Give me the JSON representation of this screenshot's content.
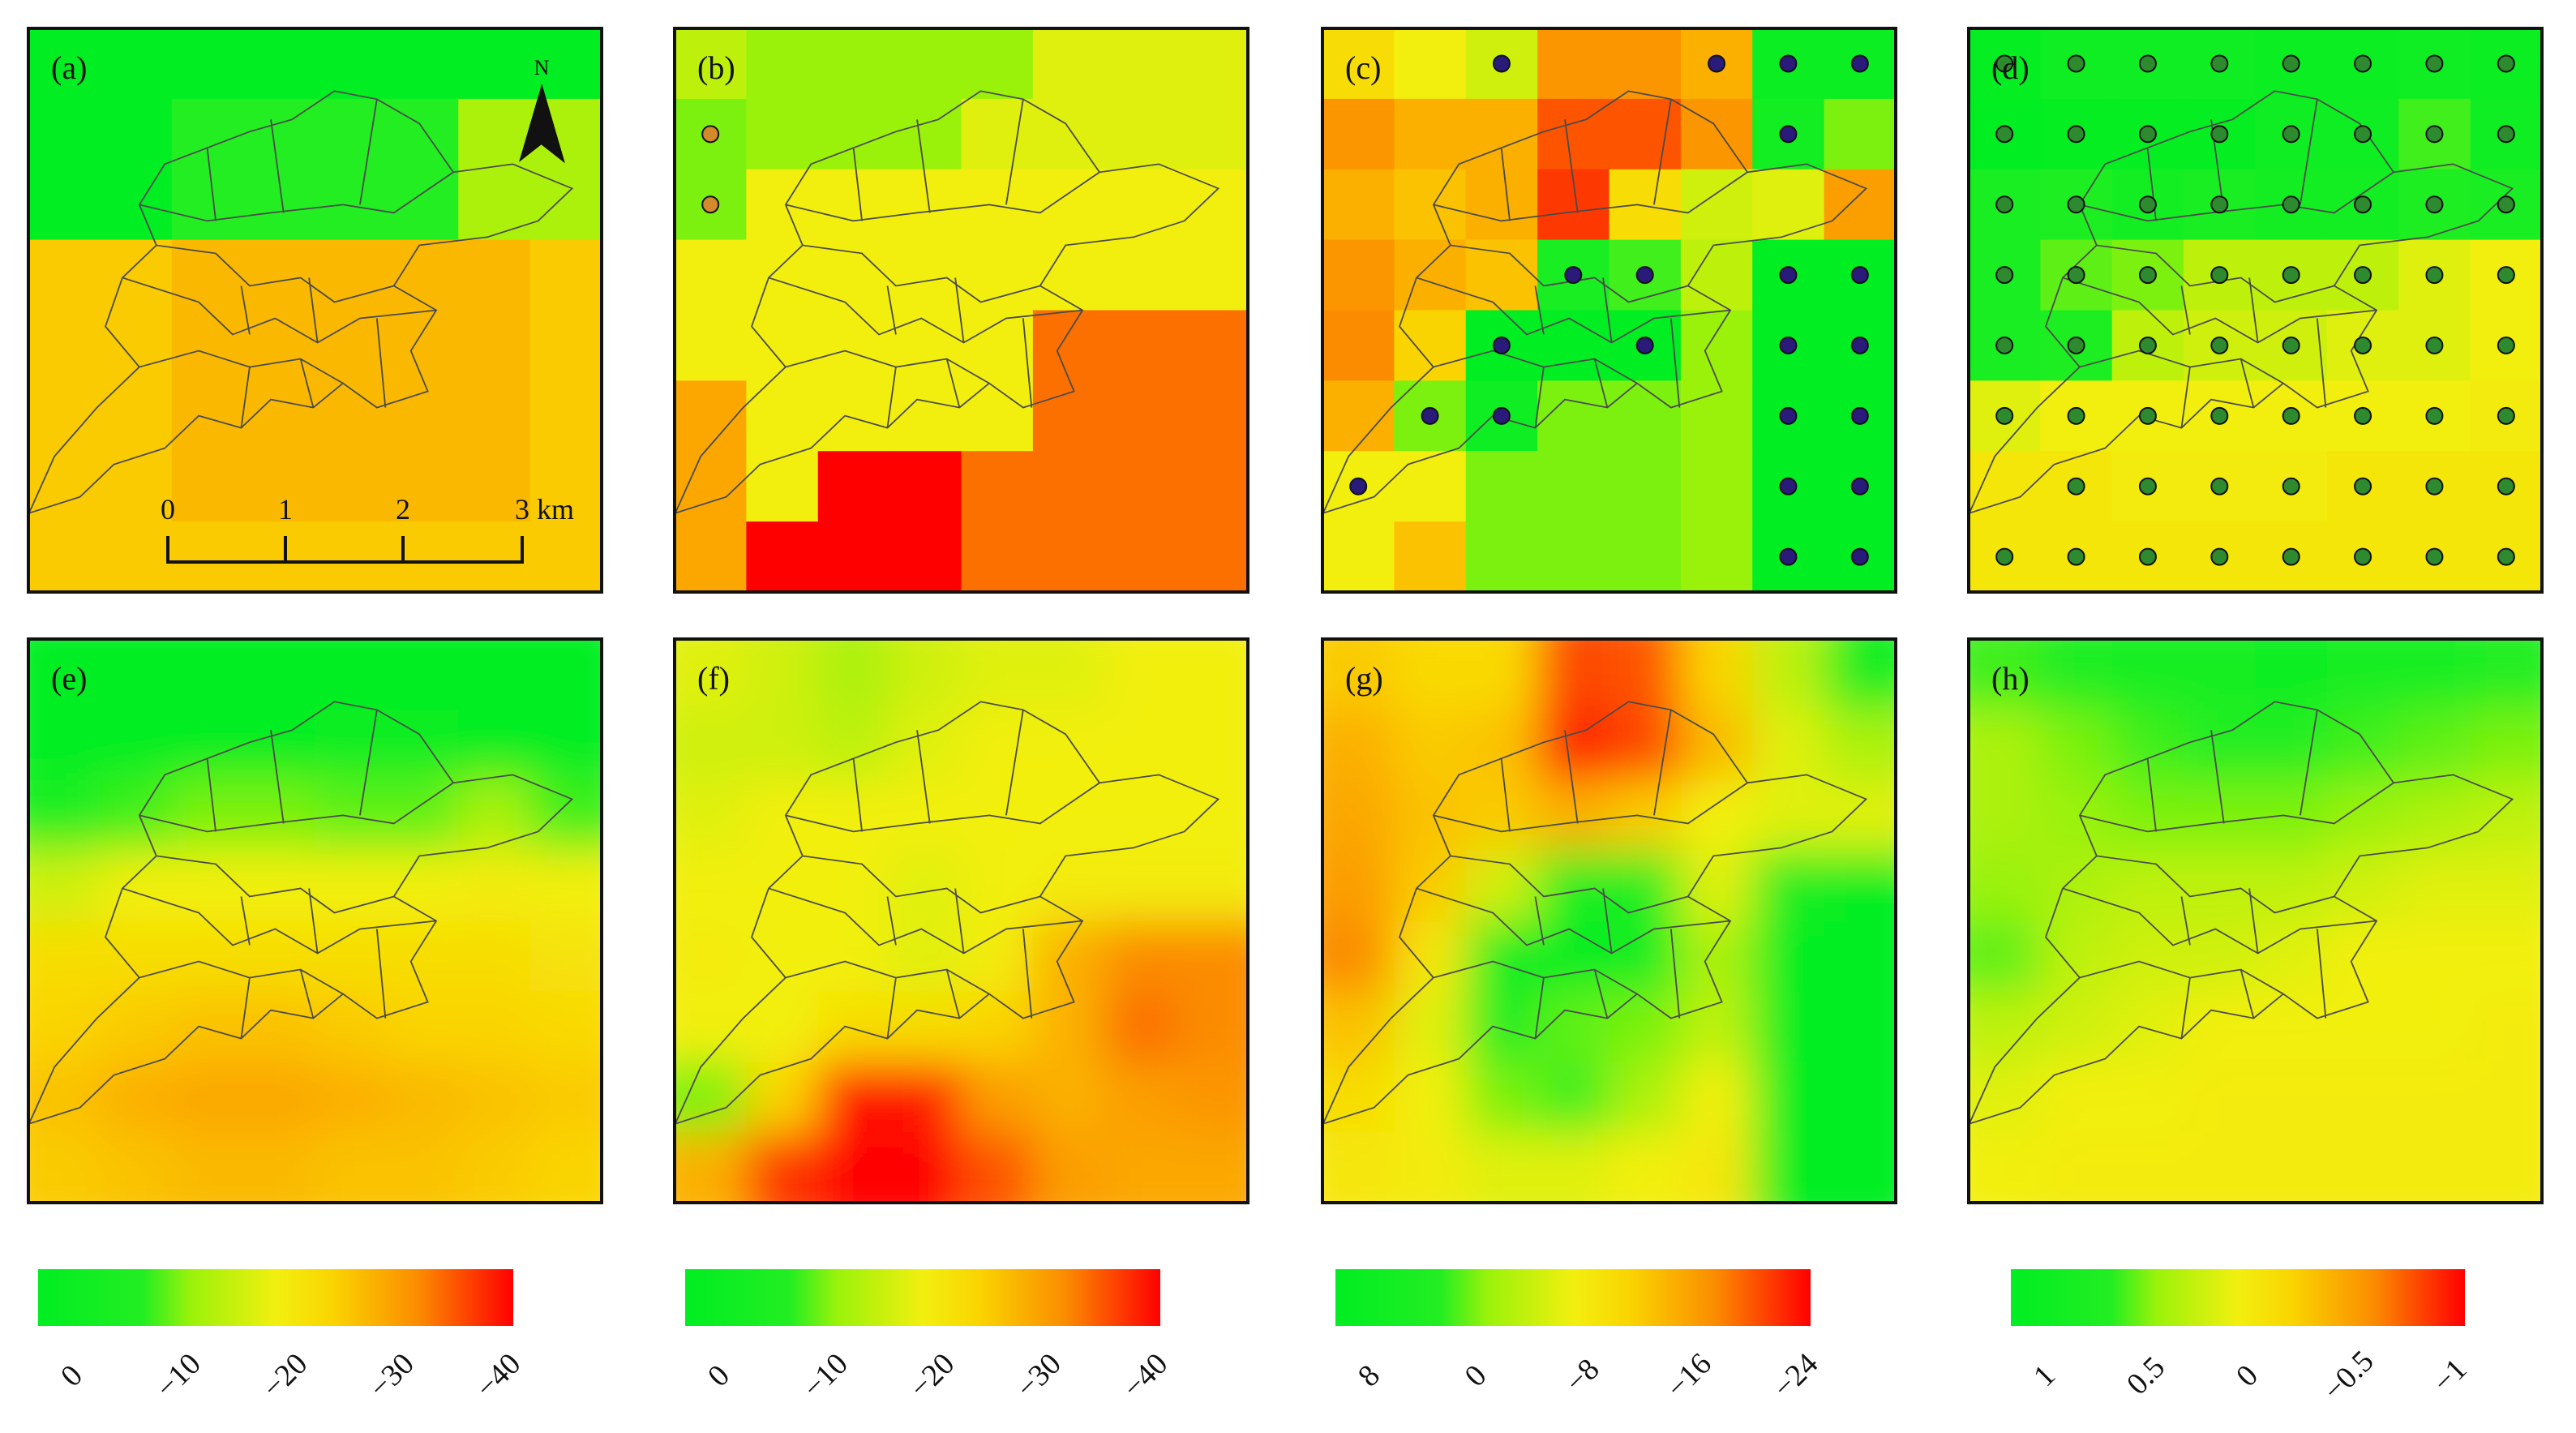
{
  "colors": {
    "green": "#00ee22",
    "light_green": "#9af20a",
    "yellow": "#f2ef0f",
    "gold": "#fad400",
    "orange": "#fb8c00",
    "red": "#ff0000",
    "dot_fill_c": "#2a1a7a",
    "dot_fill_d": "#2e8a2e",
    "dot_fill_b": "#d28a2a",
    "frame": "#111111",
    "boundary": "#4a4a4a"
  },
  "panels": [
    {
      "id": "a",
      "label": "(a)",
      "kind": "coarse",
      "grid": [
        [
          0,
          0,
          0,
          0,
          0,
          0,
          0,
          0
        ],
        [
          0,
          0,
          0.7,
          0.7,
          0.7,
          0.7,
          1.2,
          1.2
        ],
        [
          0,
          0,
          0.7,
          0.7,
          0.7,
          0.7,
          1.2,
          1.2
        ],
        [
          2.3,
          2.3,
          2.5,
          2.5,
          2.5,
          2.5,
          2.5,
          2.3
        ],
        [
          2.3,
          2.3,
          2.5,
          2.5,
          2.5,
          2.5,
          2.5,
          2.3
        ],
        [
          2.3,
          2.3,
          2.5,
          2.5,
          2.5,
          2.5,
          2.5,
          2.3
        ],
        [
          2.3,
          2.3,
          2.5,
          2.5,
          2.5,
          2.5,
          2.5,
          2.3
        ],
        [
          2.3,
          2.3,
          2.3,
          2.3,
          2.3,
          2.3,
          2.3,
          2.3
        ]
      ],
      "dots": []
    },
    {
      "id": "b",
      "label": "(b)",
      "kind": "coarse",
      "grid": [
        [
          1.3,
          1.1,
          1.1,
          1.1,
          1.1,
          1.5,
          1.5,
          1.5
        ],
        [
          1.0,
          1.1,
          1.1,
          1.1,
          1.5,
          1.5,
          1.5,
          1.5
        ],
        [
          1.0,
          1.6,
          1.6,
          1.6,
          1.6,
          1.6,
          1.6,
          1.6
        ],
        [
          1.6,
          1.6,
          1.6,
          1.6,
          1.6,
          1.6,
          1.6,
          1.6
        ],
        [
          1.6,
          1.6,
          1.6,
          1.6,
          1.6,
          3.2,
          3.2,
          3.2
        ],
        [
          2.7,
          1.6,
          1.6,
          1.6,
          1.6,
          3.2,
          3.2,
          3.2
        ],
        [
          2.7,
          1.6,
          4.0,
          4.0,
          3.2,
          3.2,
          3.2,
          3.2
        ],
        [
          2.7,
          4.0,
          4.0,
          4.0,
          3.2,
          3.2,
          3.2,
          3.2
        ]
      ],
      "dots": [
        [
          0,
          1
        ],
        [
          0,
          2
        ]
      ]
    },
    {
      "id": "c",
      "label": "(c)",
      "kind": "coarse",
      "grid": [
        [
          2.0,
          1.6,
          1.4,
          2.9,
          2.9,
          2.6,
          0.2,
          0.2
        ],
        [
          2.9,
          2.6,
          2.6,
          3.4,
          3.4,
          2.9,
          0.4,
          1.0
        ],
        [
          2.6,
          2.4,
          2.6,
          3.6,
          2.0,
          1.4,
          1.5,
          2.8
        ],
        [
          2.9,
          2.6,
          2.4,
          0.5,
          0.8,
          1.3,
          0.0,
          0.0
        ],
        [
          3.0,
          2.2,
          0.0,
          0.0,
          0.0,
          1.1,
          0.0,
          0.0
        ],
        [
          2.6,
          1.0,
          0.3,
          1.0,
          1.0,
          1.1,
          0.0,
          0.0
        ],
        [
          1.6,
          1.6,
          1.0,
          1.0,
          1.0,
          1.1,
          0.0,
          0.0
        ],
        [
          1.6,
          2.4,
          1.0,
          1.0,
          1.0,
          1.1,
          0.0,
          0.0
        ]
      ],
      "dots": [
        [
          2,
          0
        ],
        [
          5,
          0
        ],
        [
          6,
          0
        ],
        [
          7,
          0
        ],
        [
          6,
          1
        ],
        [
          3,
          3
        ],
        [
          4,
          3
        ],
        [
          6,
          3
        ],
        [
          7,
          3
        ],
        [
          2,
          4
        ],
        [
          4,
          4
        ],
        [
          6,
          4
        ],
        [
          7,
          4
        ],
        [
          1,
          5
        ],
        [
          2,
          5
        ],
        [
          6,
          5
        ],
        [
          7,
          5
        ],
        [
          0,
          6
        ],
        [
          6,
          6
        ],
        [
          7,
          6
        ],
        [
          6,
          7
        ],
        [
          7,
          7
        ]
      ]
    },
    {
      "id": "d",
      "label": "(d)",
      "kind": "coarse",
      "grid": [
        [
          0.1,
          0.3,
          0.3,
          0.3,
          0.2,
          0.2,
          0.3,
          0.2
        ],
        [
          0.0,
          0.1,
          0.1,
          0.1,
          0.3,
          0.3,
          0.8,
          0.3
        ],
        [
          0.5,
          0.6,
          0.4,
          0.5,
          0.4,
          0.4,
          0.6,
          0.5
        ],
        [
          0.5,
          0.9,
          1.0,
          1.3,
          1.3,
          1.3,
          1.5,
          1.6
        ],
        [
          0.5,
          0.6,
          1.3,
          1.4,
          1.4,
          1.5,
          1.5,
          1.6
        ],
        [
          1.5,
          1.6,
          1.6,
          1.6,
          1.6,
          1.6,
          1.6,
          1.7
        ],
        [
          1.8,
          1.8,
          1.7,
          1.7,
          1.7,
          1.8,
          1.8,
          1.8
        ],
        [
          1.8,
          1.8,
          1.8,
          1.8,
          1.8,
          1.8,
          1.8,
          1.8
        ]
      ],
      "dots": "all_except_6_0"
    },
    {
      "id": "e",
      "label": "(e)",
      "kind": "smooth",
      "grid": [
        [
          0,
          0,
          0,
          0,
          0,
          0,
          0,
          0
        ],
        [
          0,
          0,
          0,
          0,
          0.2,
          0.2,
          0.1,
          0
        ],
        [
          0.6,
          0.8,
          1.0,
          1.0,
          0.9,
          0.9,
          1.2,
          0.8
        ],
        [
          1.4,
          1.6,
          1.6,
          1.6,
          1.6,
          1.6,
          1.7,
          1.6
        ],
        [
          2.0,
          2.0,
          2.0,
          2.0,
          2.0,
          2.0,
          2.0,
          1.9
        ],
        [
          2.2,
          2.3,
          2.4,
          2.4,
          2.3,
          2.2,
          2.2,
          2.1
        ],
        [
          2.4,
          2.6,
          2.7,
          2.7,
          2.6,
          2.5,
          2.4,
          2.3
        ],
        [
          2.3,
          2.4,
          2.5,
          2.5,
          2.4,
          2.4,
          2.3,
          2.2
        ]
      ]
    },
    {
      "id": "f",
      "label": "(f)",
      "kind": "smooth",
      "grid": [
        [
          1.5,
          1.4,
          1.2,
          1.4,
          1.5,
          1.5,
          1.6,
          1.6
        ],
        [
          1.4,
          1.4,
          1.3,
          1.5,
          1.6,
          1.6,
          1.6,
          1.6
        ],
        [
          1.5,
          1.6,
          1.6,
          1.6,
          1.6,
          1.6,
          1.6,
          1.6
        ],
        [
          1.6,
          1.6,
          1.6,
          1.5,
          1.6,
          1.7,
          1.7,
          1.7
        ],
        [
          1.7,
          1.6,
          1.6,
          1.5,
          1.7,
          2.6,
          3.0,
          3.0
        ],
        [
          1.6,
          1.6,
          2.0,
          2.0,
          2.2,
          2.6,
          3.2,
          3.0
        ],
        [
          1.0,
          2.2,
          3.9,
          3.8,
          2.8,
          2.6,
          2.8,
          2.9
        ],
        [
          2.6,
          3.6,
          4.0,
          4.0,
          3.4,
          2.8,
          2.7,
          2.7
        ]
      ]
    },
    {
      "id": "g",
      "label": "(g)",
      "kind": "smooth",
      "grid": [
        [
          2.3,
          2.1,
          2.1,
          3.5,
          3.4,
          2.2,
          1.3,
          0.4
        ],
        [
          2.6,
          2.3,
          2.4,
          3.8,
          3.5,
          2.5,
          1.5,
          1.2
        ],
        [
          2.7,
          2.4,
          2.3,
          2.6,
          2.3,
          1.6,
          1.5,
          1.5
        ],
        [
          2.8,
          2.3,
          1.4,
          0.5,
          0.7,
          1.5,
          0.6,
          0.0
        ],
        [
          3.0,
          1.8,
          0.3,
          0.0,
          0.2,
          1.2,
          0.0,
          0.0
        ],
        [
          2.4,
          1.5,
          0.6,
          0.9,
          1.0,
          1.3,
          0.0,
          0.0
        ],
        [
          2.0,
          1.6,
          1.0,
          0.8,
          1.2,
          1.6,
          0.0,
          0.0
        ],
        [
          1.8,
          1.7,
          1.5,
          1.5,
          1.6,
          1.8,
          0.0,
          0.0
        ]
      ]
    },
    {
      "id": "h",
      "label": "(h)",
      "kind": "smooth",
      "grid": [
        [
          0.8,
          0.6,
          0.5,
          0.5,
          0.3,
          0.4,
          0.5,
          0.7
        ],
        [
          1.2,
          1.0,
          0.8,
          0.7,
          0.7,
          0.8,
          0.9,
          1.0
        ],
        [
          1.2,
          1.1,
          1.0,
          1.0,
          1.0,
          1.1,
          1.2,
          1.3
        ],
        [
          1.1,
          1.2,
          1.3,
          1.3,
          1.3,
          1.4,
          1.5,
          1.5
        ],
        [
          0.9,
          1.3,
          1.4,
          1.4,
          1.5,
          1.6,
          1.6,
          1.6
        ],
        [
          1.3,
          1.4,
          1.5,
          1.6,
          1.6,
          1.6,
          1.6,
          1.7
        ],
        [
          1.5,
          1.6,
          1.6,
          1.7,
          1.7,
          1.7,
          1.7,
          1.7
        ],
        [
          1.6,
          1.7,
          1.7,
          1.7,
          1.7,
          1.7,
          1.7,
          1.7
        ]
      ]
    }
  ],
  "north_arrow": {
    "label": "N"
  },
  "scale_bar": {
    "ticks": [
      "0",
      "1",
      "2",
      "3 km"
    ]
  },
  "legends": [
    {
      "id": "legend-1",
      "ticks": [
        "0",
        "−10",
        "−20",
        "−30",
        "−40"
      ]
    },
    {
      "id": "legend-2",
      "ticks": [
        "0",
        "−10",
        "−20",
        "−30",
        "−40"
      ]
    },
    {
      "id": "legend-3",
      "ticks": [
        "8",
        "0",
        "−8",
        "−16",
        "−24"
      ]
    },
    {
      "id": "legend-4",
      "ticks": [
        "1",
        "0.5",
        "0",
        "−0.5",
        "−1"
      ]
    }
  ]
}
